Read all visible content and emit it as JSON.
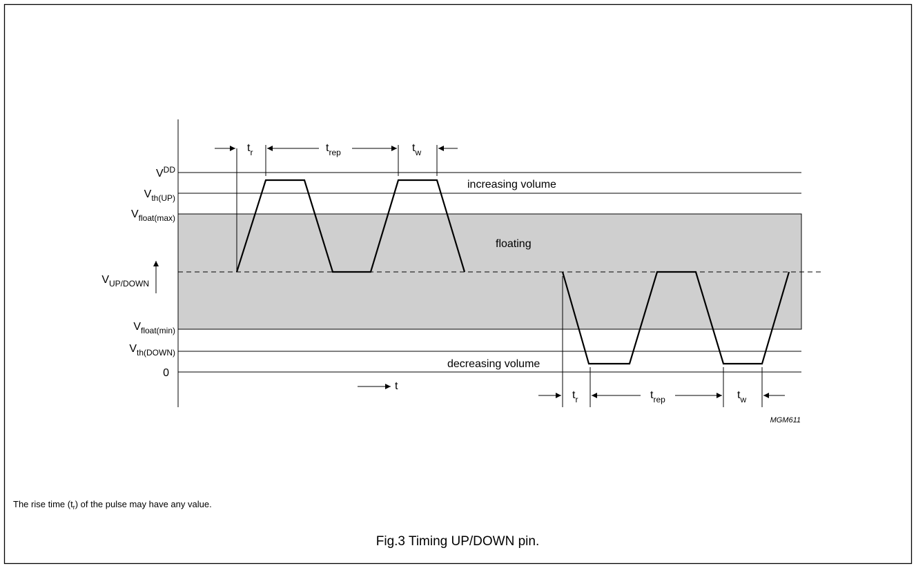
{
  "levels": {
    "vdd": {
      "main": "V",
      "sub": "DD"
    },
    "vth_up": {
      "main": "V",
      "sub": "th(UP)"
    },
    "vfloat_max": {
      "main": "V",
      "sub": "float(max)"
    },
    "vupdown": {
      "main": "V",
      "sub": "UP/DOWN"
    },
    "vfloat_min": {
      "main": "V",
      "sub": "float(min)"
    },
    "vth_down": {
      "main": "V",
      "sub": "th(DOWN)"
    },
    "zero": "0"
  },
  "regions": {
    "increasing": "increasing volume",
    "floating": "floating",
    "decreasing": "decreasing volume"
  },
  "timing": {
    "t": "t",
    "tr_sub": "r",
    "trep_sub": "rep",
    "tw_sub": "w"
  },
  "time_axis": "t",
  "figure_code": "MGM611",
  "note": {
    "pre": "The rise time (t",
    "sub": "r",
    "post": ") of the pulse may have any value."
  },
  "caption": "Fig.3  Timing UP/DOWN pin."
}
